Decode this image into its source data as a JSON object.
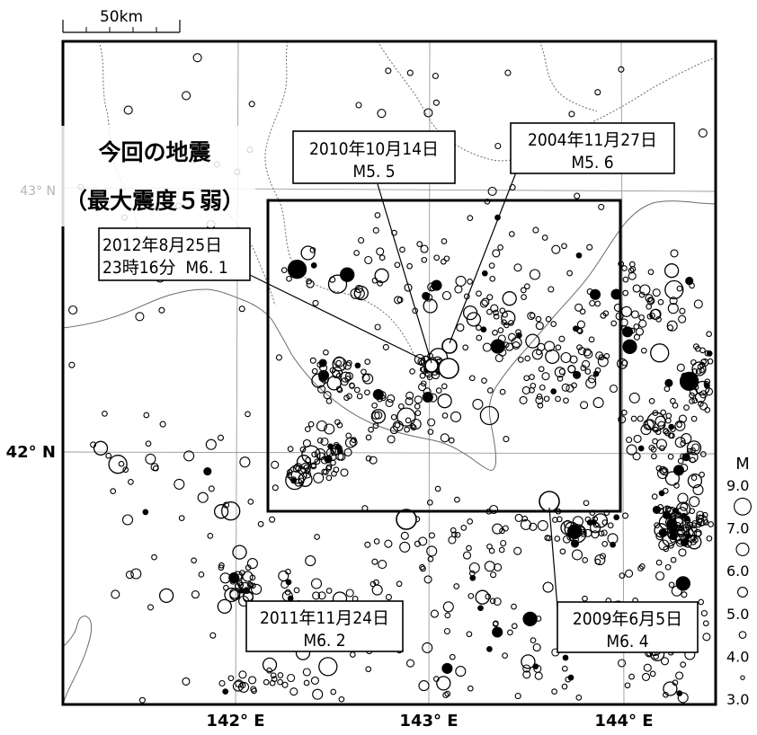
{
  "scale_bar": {
    "label": "50km"
  },
  "axes": {
    "x_ticks": [
      {
        "label": "142° E",
        "lon": 142
      },
      {
        "label": "143° E",
        "lon": 143
      },
      {
        "label": "144° E",
        "lon": 144
      }
    ],
    "y_ticks": [
      {
        "label": "42° N",
        "lat": 42
      },
      {
        "label": "43° N",
        "lat": 43
      }
    ]
  },
  "current_quake": {
    "title_line1": "今回の地震",
    "title_line2": "（最大震度５弱）"
  },
  "events": [
    {
      "date": "2010年10月14日",
      "magnitude": "M5. 5"
    },
    {
      "date": "2004年11月27日",
      "magnitude": "M5. 6"
    },
    {
      "date": "2012年8月25日",
      "time_magnitude": "23時16分  M6. 1"
    },
    {
      "date": "2011年11月24日",
      "magnitude": "M6. 2"
    },
    {
      "date": "2009年6月5日",
      "magnitude": "M6. 4"
    }
  ],
  "legend": {
    "title": "M",
    "entries": [
      {
        "label": "9.0",
        "m": 9.0
      },
      {
        "label": "",
        "m": 8.0
      },
      {
        "label": "7.0",
        "m": 7.0
      },
      {
        "label": "",
        "m": 6.5
      },
      {
        "label": "6.0",
        "m": 6.0
      },
      {
        "label": "",
        "m": 5.5
      },
      {
        "label": "5.0",
        "m": 5.0
      },
      {
        "label": "",
        "m": 4.5
      },
      {
        "label": "4.0",
        "m": 4.0
      },
      {
        "label": "",
        "m": 3.5
      },
      {
        "label": "3.0",
        "m": 3.0
      }
    ]
  },
  "colors": {
    "frame": "#000000",
    "coast": "#6b6b6b",
    "graticule": "#9a9a9a",
    "background": "#ffffff"
  }
}
